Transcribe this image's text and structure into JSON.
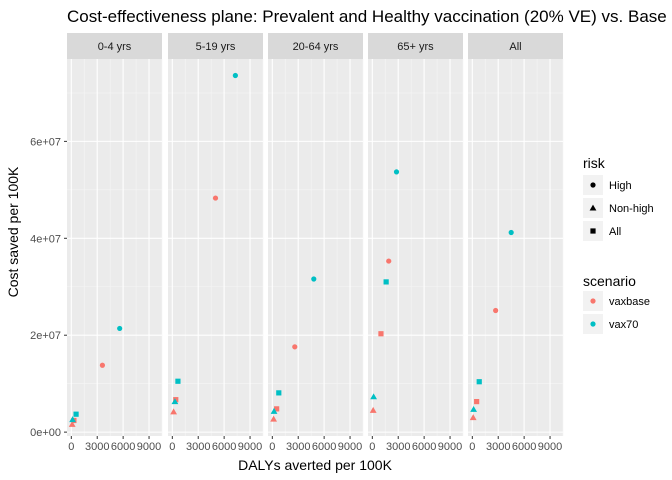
{
  "chart_data": {
    "type": "scatter",
    "title": "Cost-effectiveness plane: Prevalent and Healthy vaccination (20% VE) vs. Base",
    "xlabel": "DALYs averted per 100K",
    "ylabel": "Cost saved per 100K",
    "xlim": [
      -500,
      10500
    ],
    "ylim": [
      -800000,
      77000000
    ],
    "x_ticks": [
      0,
      3000,
      6000,
      9000
    ],
    "x_tick_labels": [
      "0",
      "3000",
      "6000",
      "9000"
    ],
    "y_ticks": [
      0,
      20000000,
      40000000,
      60000000
    ],
    "y_tick_labels": [
      "0e+00",
      "2e+07",
      "4e+07",
      "6e+07"
    ],
    "grid": true,
    "legend_position": "right",
    "facets": [
      "0-4 yrs",
      "5-19 yrs",
      "20-64 yrs",
      "65+ yrs",
      "All"
    ],
    "legend": {
      "risk": {
        "title": "risk",
        "items": [
          {
            "label": "High",
            "shape": "circle"
          },
          {
            "label": "Non-high",
            "shape": "triangle"
          },
          {
            "label": "All",
            "shape": "square"
          }
        ]
      },
      "scenario": {
        "title": "scenario",
        "items": [
          {
            "label": "vaxbase",
            "color": "#F8766D"
          },
          {
            "label": "vax70",
            "color": "#00BFC4"
          }
        ]
      }
    },
    "points": [
      {
        "facet": "0-4 yrs",
        "scenario": "vaxbase",
        "risk": "High",
        "x": 3600,
        "y": 13800000
      },
      {
        "facet": "0-4 yrs",
        "scenario": "vaxbase",
        "risk": "Non-high",
        "x": 100,
        "y": 1600000
      },
      {
        "facet": "0-4 yrs",
        "scenario": "vaxbase",
        "risk": "All",
        "x": 300,
        "y": 2400000
      },
      {
        "facet": "0-4 yrs",
        "scenario": "vax70",
        "risk": "High",
        "x": 5600,
        "y": 21400000
      },
      {
        "facet": "0-4 yrs",
        "scenario": "vax70",
        "risk": "Non-high",
        "x": 150,
        "y": 2600000
      },
      {
        "facet": "0-4 yrs",
        "scenario": "vax70",
        "risk": "All",
        "x": 550,
        "y": 3700000
      },
      {
        "facet": "5-19 yrs",
        "scenario": "vaxbase",
        "risk": "High",
        "x": 5000,
        "y": 48300000
      },
      {
        "facet": "5-19 yrs",
        "scenario": "vaxbase",
        "risk": "Non-high",
        "x": 150,
        "y": 4200000
      },
      {
        "facet": "5-19 yrs",
        "scenario": "vaxbase",
        "risk": "All",
        "x": 400,
        "y": 6700000
      },
      {
        "facet": "5-19 yrs",
        "scenario": "vax70",
        "risk": "High",
        "x": 7300,
        "y": 73600000
      },
      {
        "facet": "5-19 yrs",
        "scenario": "vax70",
        "risk": "Non-high",
        "x": 300,
        "y": 6300000
      },
      {
        "facet": "5-19 yrs",
        "scenario": "vax70",
        "risk": "All",
        "x": 650,
        "y": 10500000
      },
      {
        "facet": "20-64 yrs",
        "scenario": "vaxbase",
        "risk": "High",
        "x": 2600,
        "y": 17600000
      },
      {
        "facet": "20-64 yrs",
        "scenario": "vaxbase",
        "risk": "Non-high",
        "x": 150,
        "y": 2700000
      },
      {
        "facet": "20-64 yrs",
        "scenario": "vaxbase",
        "risk": "All",
        "x": 500,
        "y": 4800000
      },
      {
        "facet": "20-64 yrs",
        "scenario": "vax70",
        "risk": "High",
        "x": 4800,
        "y": 31600000
      },
      {
        "facet": "20-64 yrs",
        "scenario": "vax70",
        "risk": "Non-high",
        "x": 200,
        "y": 4300000
      },
      {
        "facet": "20-64 yrs",
        "scenario": "vax70",
        "risk": "All",
        "x": 750,
        "y": 8100000
      },
      {
        "facet": "65+ yrs",
        "scenario": "vaxbase",
        "risk": "High",
        "x": 1900,
        "y": 35300000
      },
      {
        "facet": "65+ yrs",
        "scenario": "vaxbase",
        "risk": "Non-high",
        "x": 100,
        "y": 4500000
      },
      {
        "facet": "65+ yrs",
        "scenario": "vaxbase",
        "risk": "All",
        "x": 1000,
        "y": 20300000
      },
      {
        "facet": "65+ yrs",
        "scenario": "vax70",
        "risk": "High",
        "x": 2800,
        "y": 53700000
      },
      {
        "facet": "65+ yrs",
        "scenario": "vax70",
        "risk": "Non-high",
        "x": 150,
        "y": 7300000
      },
      {
        "facet": "65+ yrs",
        "scenario": "vax70",
        "risk": "All",
        "x": 1600,
        "y": 31000000
      },
      {
        "facet": "All",
        "scenario": "vaxbase",
        "risk": "High",
        "x": 2700,
        "y": 25100000
      },
      {
        "facet": "All",
        "scenario": "vaxbase",
        "risk": "Non-high",
        "x": 100,
        "y": 3000000
      },
      {
        "facet": "All",
        "scenario": "vaxbase",
        "risk": "All",
        "x": 500,
        "y": 6300000
      },
      {
        "facet": "All",
        "scenario": "vax70",
        "risk": "High",
        "x": 4500,
        "y": 41200000
      },
      {
        "facet": "All",
        "scenario": "vax70",
        "risk": "Non-high",
        "x": 150,
        "y": 4700000
      },
      {
        "facet": "All",
        "scenario": "vax70",
        "risk": "All",
        "x": 800,
        "y": 10400000
      }
    ]
  }
}
